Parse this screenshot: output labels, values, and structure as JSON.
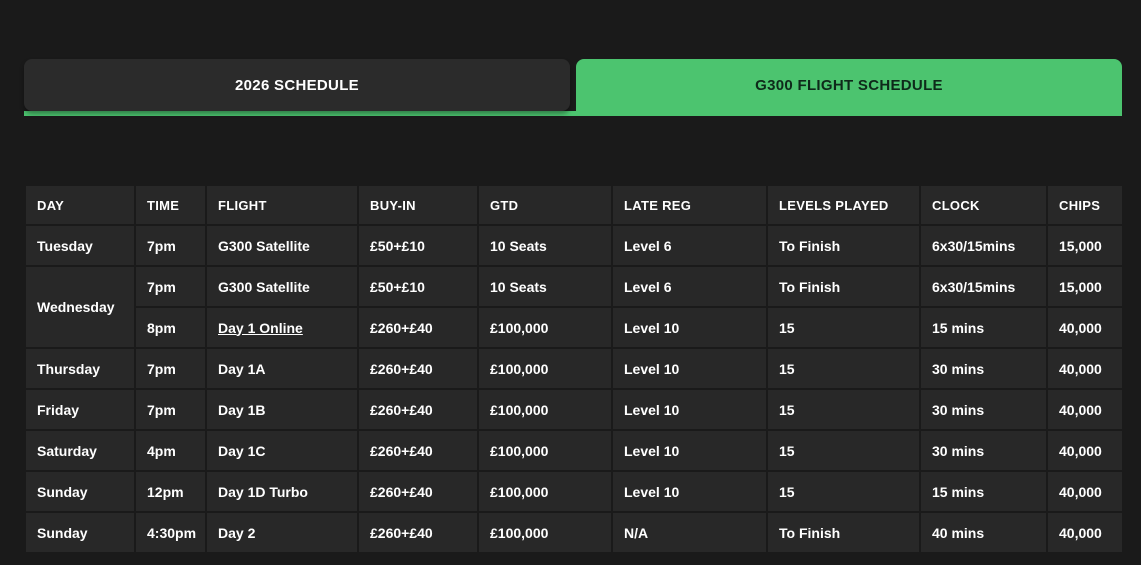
{
  "colors": {
    "accent_green": "#4cc46f"
  },
  "tabs": [
    {
      "label": "2026 SCHEDULE",
      "active": false
    },
    {
      "label": "G300 FLIGHT SCHEDULE",
      "active": true
    }
  ],
  "table": {
    "columns": [
      "DAY",
      "TIME",
      "FLIGHT",
      "BUY-IN",
      "GTD",
      "LATE REG",
      "LEVELS PLAYED",
      "CLOCK",
      "CHIPS"
    ],
    "rows": [
      {
        "day": "Tuesday",
        "day_rowspan": 1,
        "time": "7pm",
        "flight": "G300 Satellite",
        "flight_link": false,
        "buy_in": "£50+£10",
        "gtd": "10 Seats",
        "late_reg": "Level 6",
        "levels_played": "To Finish",
        "clock": "6x30/15mins",
        "chips": "15,000"
      },
      {
        "day": "Wednesday",
        "day_rowspan": 2,
        "time": "7pm",
        "flight": "G300 Satellite",
        "flight_link": false,
        "buy_in": "£50+£10",
        "gtd": "10 Seats",
        "late_reg": "Level 6",
        "levels_played": "To Finish",
        "clock": "6x30/15mins",
        "chips": "15,000"
      },
      {
        "day": null,
        "day_rowspan": 0,
        "time": "8pm",
        "flight": "Day 1 Online",
        "flight_link": true,
        "buy_in": "£260+£40",
        "gtd": "£100,000",
        "late_reg": "Level 10",
        "levels_played": "15",
        "clock": "15 mins",
        "chips": "40,000"
      },
      {
        "day": "Thursday",
        "day_rowspan": 1,
        "time": "7pm",
        "flight": "Day 1A",
        "flight_link": false,
        "buy_in": "£260+£40",
        "gtd": "£100,000",
        "late_reg": "Level 10",
        "levels_played": "15",
        "clock": "30 mins",
        "chips": "40,000"
      },
      {
        "day": "Friday",
        "day_rowspan": 1,
        "time": "7pm",
        "flight": "Day 1B",
        "flight_link": false,
        "buy_in": "£260+£40",
        "gtd": "£100,000",
        "late_reg": "Level 10",
        "levels_played": "15",
        "clock": "30 mins",
        "chips": "40,000"
      },
      {
        "day": "Saturday",
        "day_rowspan": 1,
        "time": "4pm",
        "flight": "Day 1C",
        "flight_link": false,
        "buy_in": "£260+£40",
        "gtd": "£100,000",
        "late_reg": "Level 10",
        "levels_played": "15",
        "clock": "30 mins",
        "chips": "40,000"
      },
      {
        "day": "Sunday",
        "day_rowspan": 1,
        "time": "12pm",
        "flight": "Day 1D Turbo",
        "flight_link": false,
        "buy_in": "£260+£40",
        "gtd": "£100,000",
        "late_reg": "Level 10",
        "levels_played": "15",
        "clock": "15 mins",
        "chips": "40,000"
      },
      {
        "day": "Sunday",
        "day_rowspan": 1,
        "time": "4:30pm",
        "flight": "Day 2",
        "flight_link": false,
        "buy_in": "£260+£40",
        "gtd": "£100,000",
        "late_reg": "N/A",
        "levels_played": "To Finish",
        "clock": "40 mins",
        "chips": "40,000"
      }
    ]
  }
}
